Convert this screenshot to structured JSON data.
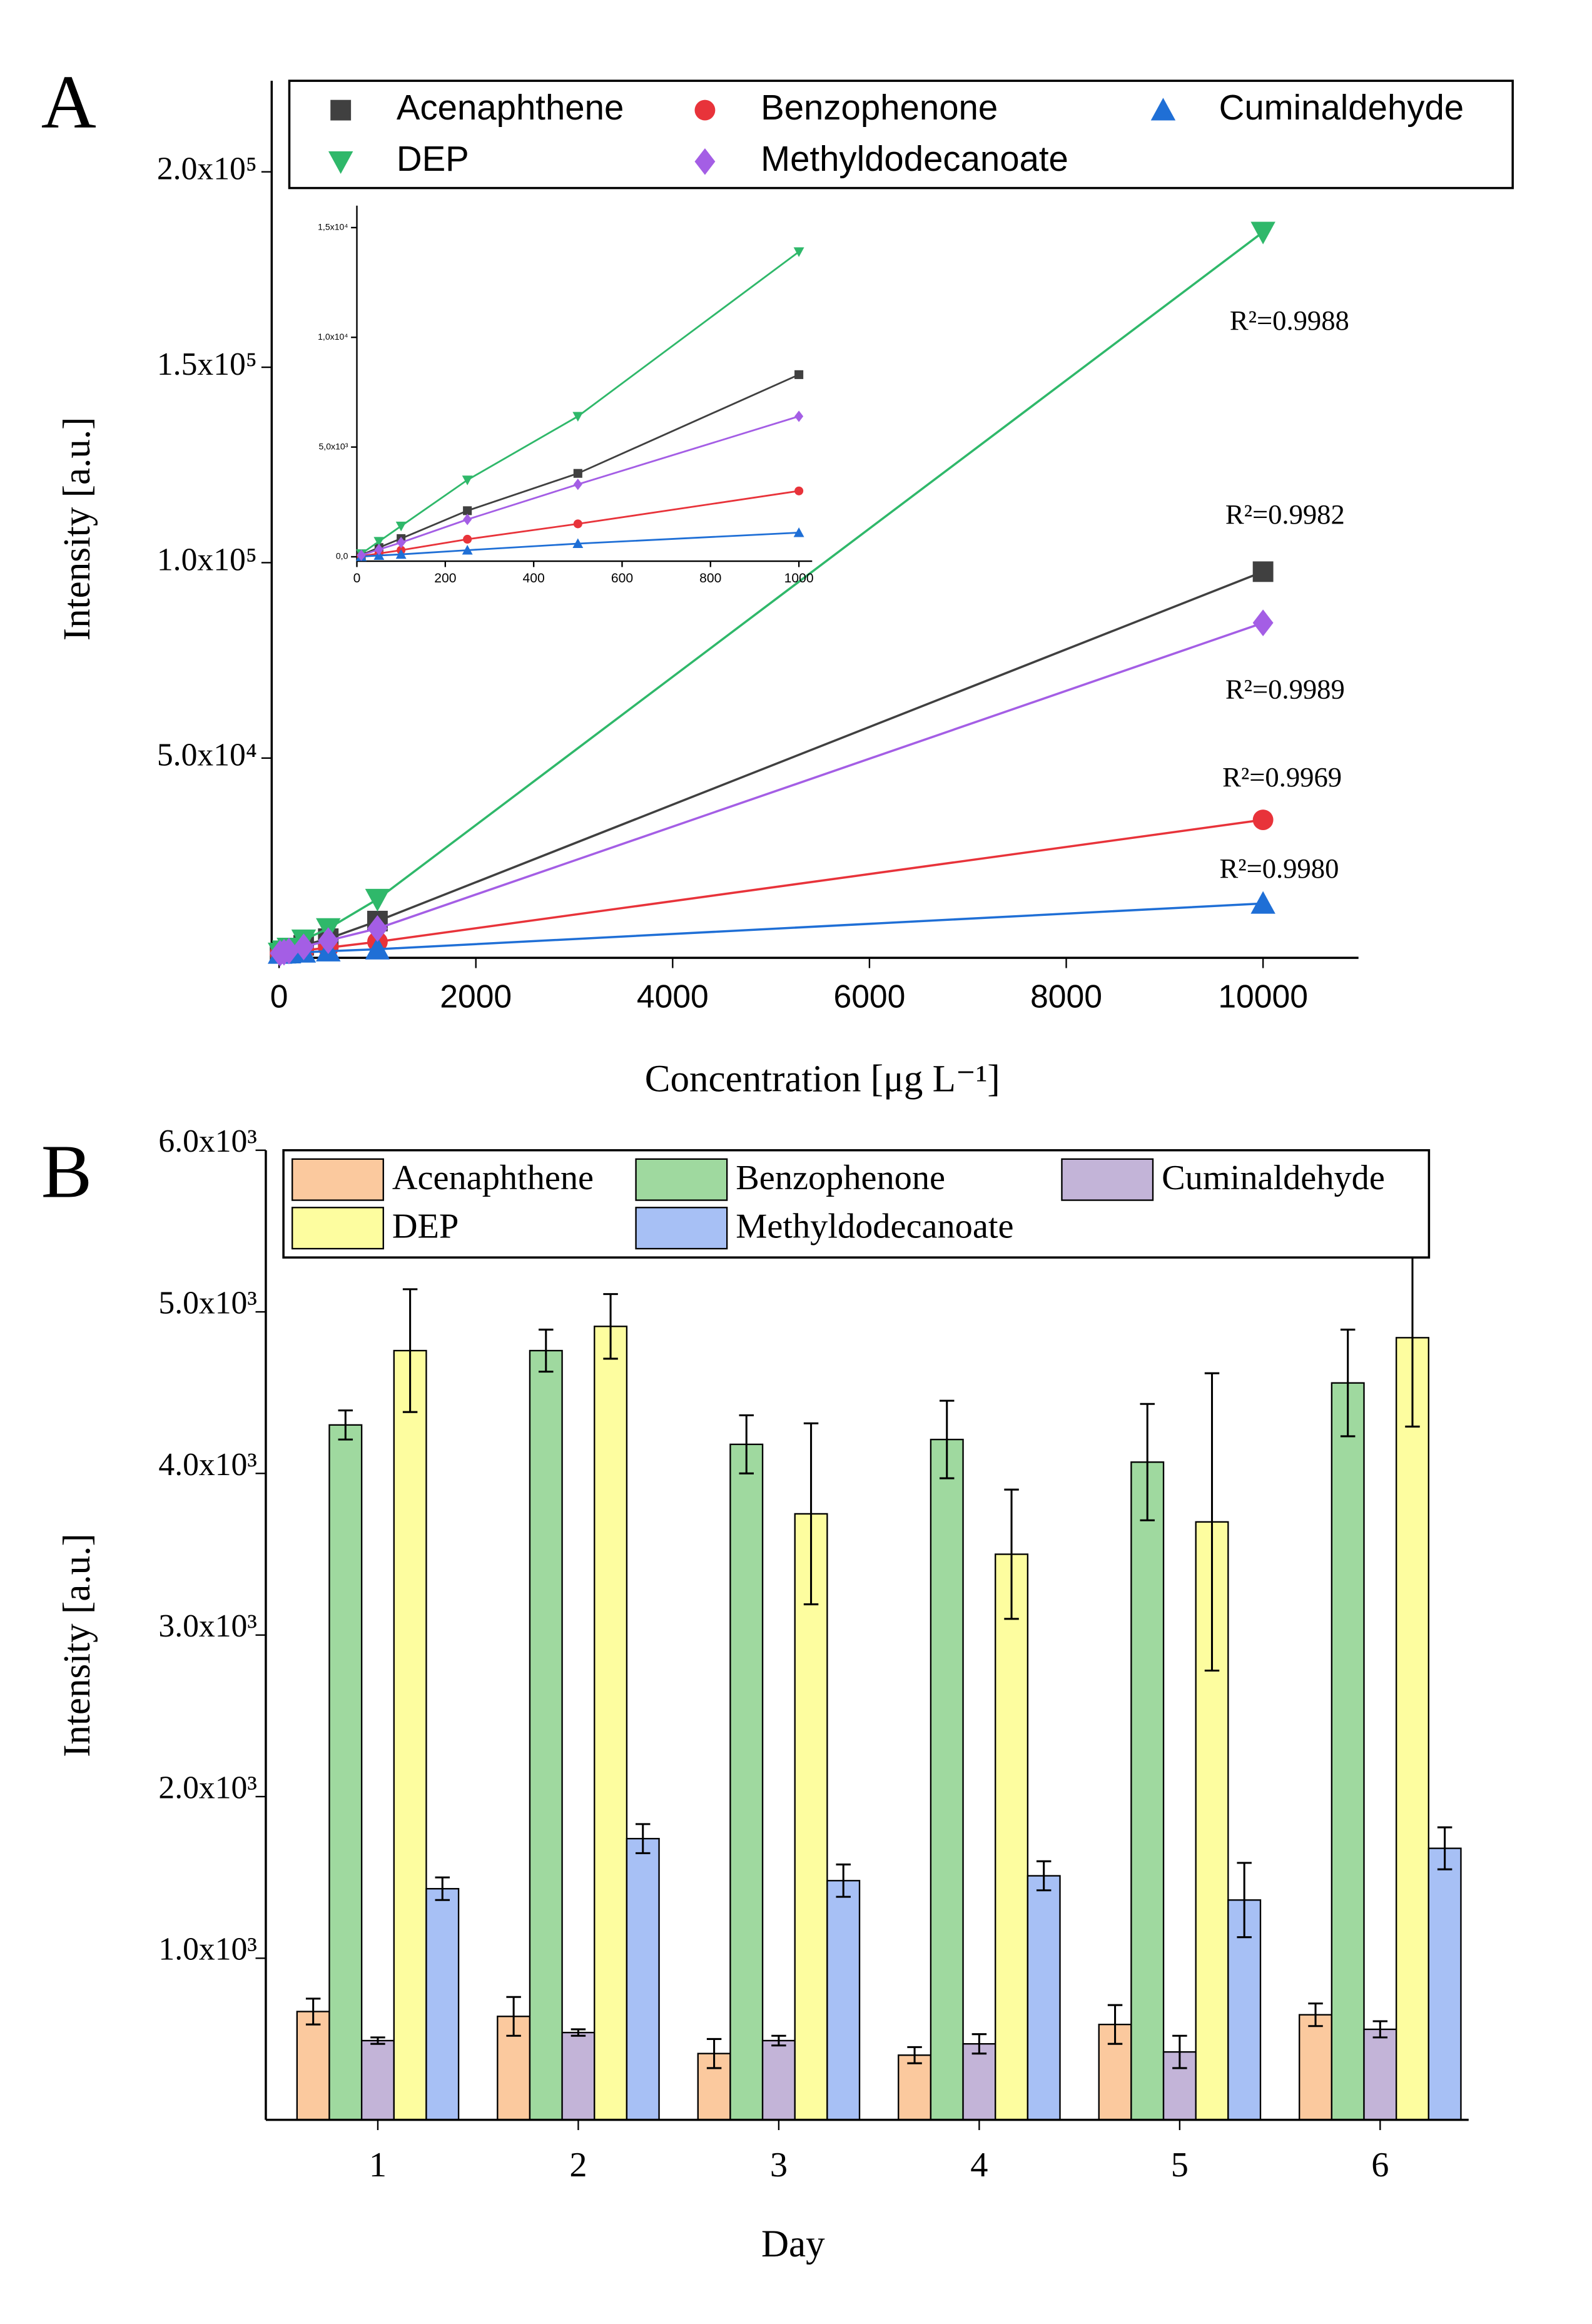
{
  "chart_data": [
    {
      "type": "scatter",
      "panel": "A",
      "x_label": "Concentration  [μg L⁻¹]",
      "y_label": "Intensity [a.u.]",
      "x": [
        10,
        50,
        100,
        250,
        500,
        1000,
        10000
      ],
      "series": [
        {
          "name": "Acenaphthene",
          "color": "#404040",
          "marker": "square",
          "values": [
            80,
            420,
            830,
            2100,
            3800,
            8300,
            97700
          ]
        },
        {
          "name": "Benzophenone",
          "color": "#e8333a",
          "marker": "circle",
          "values": [
            30,
            150,
            300,
            800,
            1500,
            3000,
            34200
          ]
        },
        {
          "name": "Cuminaldehyde",
          "color": "#1f6fd6",
          "marker": "triangle-up",
          "values": [
            10,
            60,
            110,
            300,
            600,
            1100,
            12800
          ]
        },
        {
          "name": "DEP",
          "color": "#2fb86a",
          "marker": "triangle-down",
          "values": [
            140,
            700,
            1400,
            3500,
            6400,
            13900,
            184600
          ]
        },
        {
          "name": "Methyldodecanoate",
          "color": "#a45ee5",
          "marker": "diamond",
          "values": [
            70,
            330,
            650,
            1700,
            3300,
            6400,
            84600
          ]
        }
      ],
      "annotations": [
        "R²=0.9988",
        "R²=0.9982",
        "R²=0.9989",
        "R²=0.9969",
        "R²=0.9980"
      ],
      "xlim": [
        -75,
        10970
      ],
      "ylim": [
        -1100,
        223300
      ],
      "xticks": [
        0,
        2000,
        4000,
        6000,
        8000,
        10000
      ],
      "yticks": [
        {
          "value": 50000,
          "label": "5.0x10⁴"
        },
        {
          "value": 100000,
          "label": "1.0x10⁵"
        },
        {
          "value": 150000,
          "label": "1.5x10⁵"
        },
        {
          "value": 200000,
          "label": "2.0x10⁵"
        }
      ],
      "inset": {
        "xlim": [
          0,
          1030
        ],
        "ylim": [
          -200,
          16000
        ],
        "xticks": [
          0,
          200,
          400,
          600,
          800,
          1000
        ],
        "yticks": [
          {
            "value": 0,
            "label": "0,0"
          },
          {
            "value": 5000,
            "label": "5,0x10³"
          },
          {
            "value": 10000,
            "label": "1,0x10⁴"
          },
          {
            "value": 15000,
            "label": "1,5x10⁴"
          }
        ]
      }
    },
    {
      "type": "bar",
      "panel": "B",
      "x_label": "Day",
      "y_label": "Intensity [a.u.]",
      "categories": [
        "1",
        "2",
        "3",
        "4",
        "5",
        "6"
      ],
      "series": [
        {
          "name": "Acenaphthene",
          "color": "#fbc99e",
          "values": [
            670,
            640,
            410,
            400,
            590,
            650
          ],
          "errors": [
            80,
            120,
            90,
            50,
            120,
            70
          ]
        },
        {
          "name": "Benzophenone",
          "color": "#9fd99f",
          "values": [
            4300,
            4760,
            4180,
            4210,
            4070,
            4560
          ],
          "errors": [
            90,
            130,
            180,
            240,
            360,
            330
          ]
        },
        {
          "name": "Cuminaldehyde",
          "color": "#c3b4d8",
          "values": [
            490,
            540,
            490,
            470,
            420,
            560
          ],
          "errors": [
            20,
            20,
            30,
            60,
            100,
            50
          ]
        },
        {
          "name": "DEP",
          "color": "#fdfd9f",
          "values": [
            4760,
            4910,
            3750,
            3500,
            3700,
            4840
          ],
          "errors": [
            380,
            200,
            560,
            400,
            920,
            550
          ]
        },
        {
          "name": "Methyldodecanoate",
          "color": "#a7c0f5",
          "values": [
            1430,
            1740,
            1480,
            1510,
            1360,
            1680
          ],
          "errors": [
            70,
            90,
            100,
            90,
            230,
            130
          ]
        }
      ],
      "ylim": [
        0,
        6000
      ],
      "yticks": [
        {
          "value": 1000,
          "label": "1.0x10³"
        },
        {
          "value": 2000,
          "label": "2.0x10³"
        },
        {
          "value": 3000,
          "label": "3.0x10³"
        },
        {
          "value": 4000,
          "label": "4.0x10³"
        },
        {
          "value": 5000,
          "label": "5.0x10³"
        },
        {
          "value": 6000,
          "label": "6.0x10³"
        }
      ]
    }
  ]
}
